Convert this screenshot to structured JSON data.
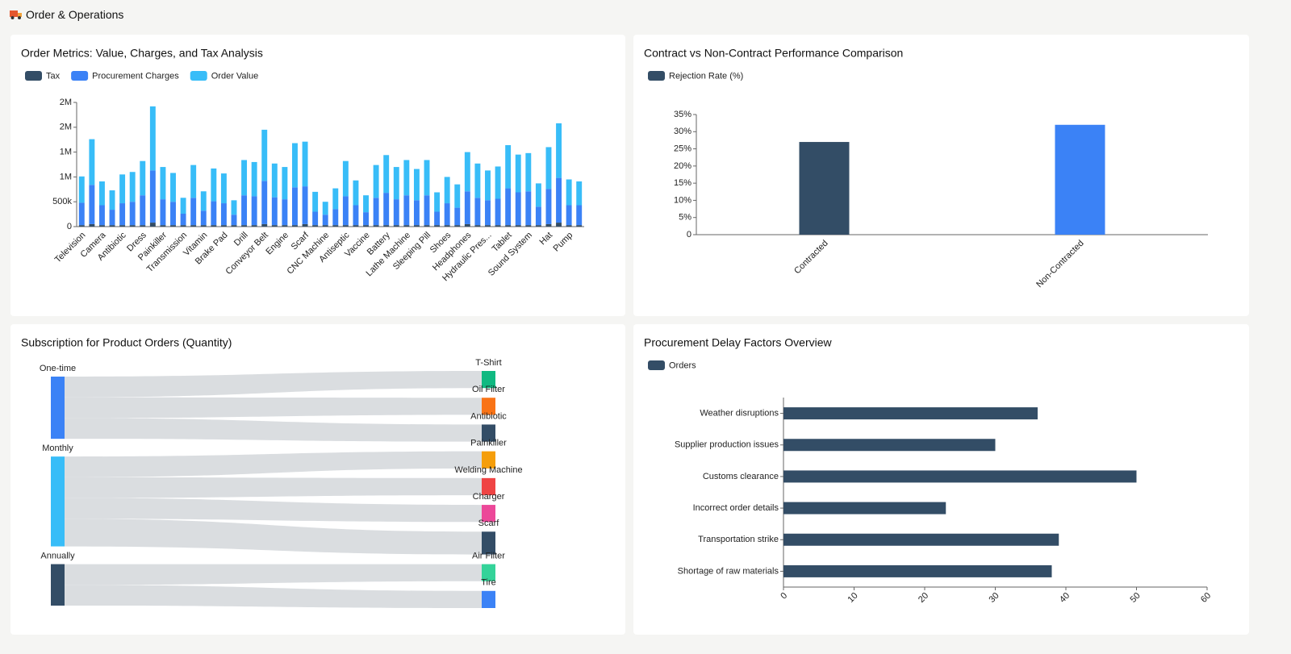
{
  "header": {
    "title": "Order & Operations"
  },
  "chart_data": [
    {
      "type": "bar",
      "stacked": true,
      "title": "Order Metrics: Value, Charges, and Tax Analysis",
      "categories": [
        "Television",
        null,
        "Camera",
        null,
        "Antibiotic",
        null,
        "Dress",
        null,
        "Painkiller",
        null,
        "Transmission",
        null,
        "Vitamin",
        null,
        "Brake Pad",
        null,
        "Drill",
        null,
        "Conveyor Belt",
        null,
        "Engine",
        null,
        "Scarf",
        null,
        "CNC Machine",
        null,
        "Antiseptic",
        null,
        "Vaccine",
        null,
        "Battery",
        null,
        "Lathe Machine",
        null,
        "Sleeping Pill",
        null,
        "Shoes",
        null,
        "Headphones",
        null,
        "Hydraulic Pres...",
        null,
        "Tablet",
        null,
        "Sound System",
        null,
        "Hat",
        null,
        "Pump",
        null
      ],
      "series": [
        {
          "name": "Tax",
          "color": "#334d66",
          "values": [
            30000,
            50000,
            30000,
            30000,
            30000,
            30000,
            30000,
            80000,
            30000,
            30000,
            30000,
            30000,
            30000,
            30000,
            30000,
            30000,
            30000,
            30000,
            50000,
            30000,
            30000,
            30000,
            50000,
            30000,
            30000,
            30000,
            30000,
            30000,
            30000,
            30000,
            30000,
            30000,
            30000,
            30000,
            30000,
            30000,
            30000,
            30000,
            50000,
            30000,
            30000,
            30000,
            30000,
            30000,
            30000,
            30000,
            50000,
            80000,
            30000,
            30000
          ]
        },
        {
          "name": "Procurement Charges",
          "color": "#3b82f6",
          "values": [
            450000,
            790000,
            400000,
            310000,
            440000,
            470000,
            600000,
            1050000,
            520000,
            470000,
            230000,
            550000,
            290000,
            480000,
            440000,
            210000,
            600000,
            580000,
            870000,
            560000,
            520000,
            760000,
            760000,
            270000,
            210000,
            320000,
            580000,
            400000,
            260000,
            550000,
            650000,
            520000,
            600000,
            500000,
            600000,
            270000,
            440000,
            350000,
            660000,
            550000,
            500000,
            530000,
            740000,
            660000,
            680000,
            370000,
            710000,
            900000,
            400000,
            400000
          ]
        },
        {
          "name": "Order Value",
          "color": "#38bdf8",
          "values": [
            530000,
            920000,
            480000,
            390000,
            580000,
            600000,
            690000,
            1290000,
            650000,
            580000,
            320000,
            660000,
            390000,
            660000,
            600000,
            290000,
            710000,
            690000,
            1030000,
            680000,
            650000,
            890000,
            900000,
            400000,
            260000,
            420000,
            710000,
            500000,
            340000,
            660000,
            760000,
            650000,
            710000,
            630000,
            710000,
            390000,
            530000,
            470000,
            790000,
            690000,
            600000,
            650000,
            870000,
            760000,
            770000,
            470000,
            840000,
            1100000,
            520000,
            480000
          ]
        }
      ],
      "ylim": [
        0,
        2500000
      ],
      "yticks": [
        0,
        {
          "value": 500000,
          "label": "500k"
        },
        {
          "value": 1000000,
          "label": "1M"
        },
        {
          "value": 1500000,
          "label": "1M"
        },
        {
          "value": 2000000,
          "label": "2M"
        },
        {
          "value": 2500000,
          "label": "2M"
        }
      ]
    },
    {
      "type": "bar",
      "title": "Contract vs Non-Contract Performance Comparison",
      "categories": [
        "Contracted",
        "Non-Contracted"
      ],
      "series": [
        {
          "name": "Rejection Rate (%)",
          "color": "#334d66",
          "colors": [
            "#334d66",
            "#3b82f6"
          ],
          "values": [
            27,
            32
          ]
        }
      ],
      "ylim": [
        0,
        35
      ],
      "yticks": [
        0,
        {
          "value": 5,
          "label": "5%"
        },
        {
          "value": 10,
          "label": "10%"
        },
        {
          "value": 15,
          "label": "15%"
        },
        {
          "value": 20,
          "label": "20%"
        },
        {
          "value": 25,
          "label": "25%"
        },
        {
          "value": 30,
          "label": "30%"
        },
        {
          "value": 35,
          "label": "35%"
        }
      ]
    },
    {
      "type": "sankey",
      "title": "Subscription for Product Orders (Quantity)",
      "link_color": "#d6d9dd",
      "nodes": [
        {
          "name": "One-time",
          "color": "#3b82f6"
        },
        {
          "name": "Monthly",
          "color": "#38bdf8"
        },
        {
          "name": "Annually",
          "color": "#334d66"
        },
        {
          "name": "T-Shirt",
          "color": "#10b981"
        },
        {
          "name": "Oil Filter",
          "color": "#f97316"
        },
        {
          "name": "Antibiotic",
          "color": "#334d66"
        },
        {
          "name": "Painkiller",
          "color": "#f59e0b"
        },
        {
          "name": "Welding Machine",
          "color": "#ef4444"
        },
        {
          "name": "Charger",
          "color": "#ec4899"
        },
        {
          "name": "Scarf",
          "color": "#334d66"
        },
        {
          "name": "Air Filter",
          "color": "#34d399"
        },
        {
          "name": "Tire",
          "color": "#3b82f6"
        }
      ],
      "links": [
        {
          "source": "One-time",
          "target": "T-Shirt",
          "value": 3
        },
        {
          "source": "One-time",
          "target": "Oil Filter",
          "value": 3
        },
        {
          "source": "One-time",
          "target": "Antibiotic",
          "value": 3
        },
        {
          "source": "Monthly",
          "target": "Painkiller",
          "value": 3
        },
        {
          "source": "Monthly",
          "target": "Welding Machine",
          "value": 3
        },
        {
          "source": "Monthly",
          "target": "Charger",
          "value": 3
        },
        {
          "source": "Monthly",
          "target": "Scarf",
          "value": 4
        },
        {
          "source": "Annually",
          "target": "Air Filter",
          "value": 3
        },
        {
          "source": "Annually",
          "target": "Tire",
          "value": 3
        }
      ]
    },
    {
      "type": "barh",
      "title": "Procurement Delay Factors Overview",
      "categories": [
        "Weather disruptions",
        "Supplier production issues",
        "Customs clearance",
        "Incorrect order details",
        "Transportation strike",
        "Shortage of raw materials"
      ],
      "series": [
        {
          "name": "Orders",
          "color": "#334d66",
          "values": [
            36,
            30,
            50,
            23,
            39,
            38
          ]
        }
      ],
      "xlim": [
        0,
        60
      ],
      "xticks": [
        0,
        10,
        20,
        30,
        40,
        50,
        60
      ]
    }
  ]
}
